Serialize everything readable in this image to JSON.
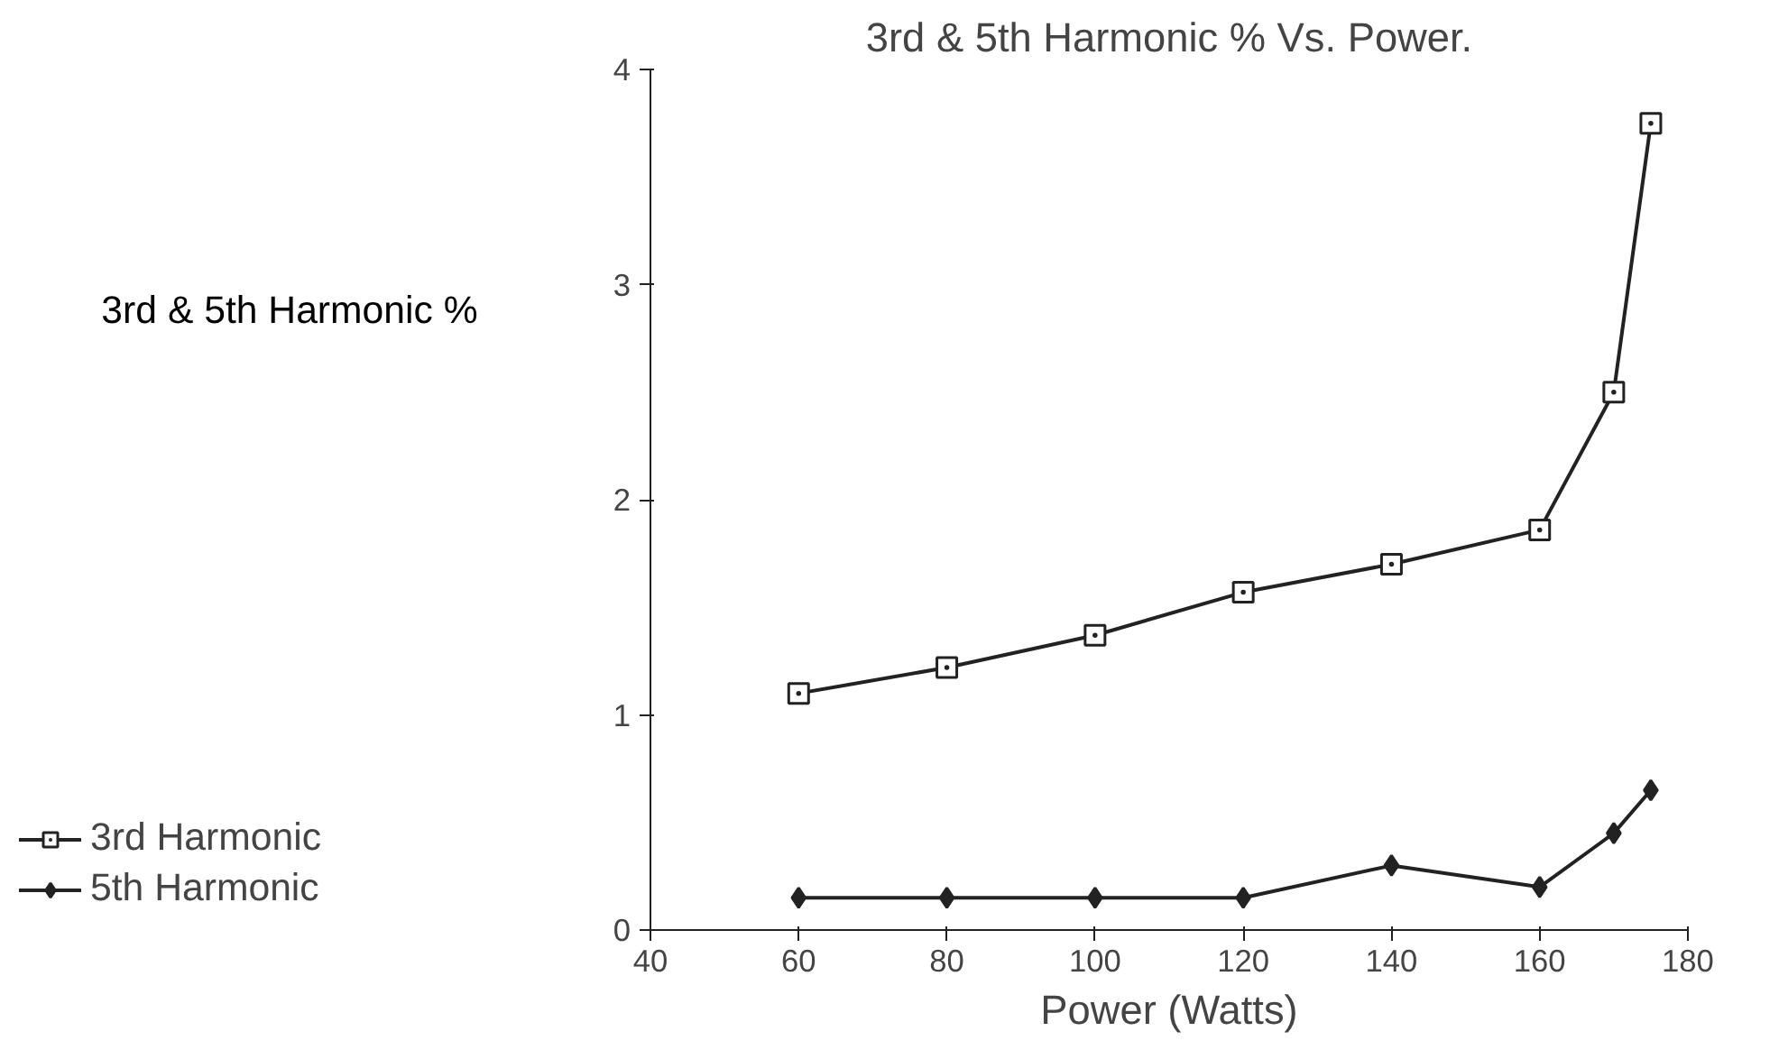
{
  "chart_data": {
    "type": "line",
    "title": "3rd & 5th Harmonic % Vs. Power.",
    "xlabel": "Power (Watts)",
    "ylabel": "3rd & 5th Harmonic %",
    "x": [
      60,
      80,
      100,
      120,
      140,
      160,
      170,
      175
    ],
    "series": [
      {
        "name": "3rd Harmonic",
        "color": "#222222",
        "marker": "square",
        "values": [
          1.1,
          1.22,
          1.37,
          1.57,
          1.7,
          1.86,
          2.5,
          3.75
        ]
      },
      {
        "name": "5th Harmonic",
        "color": "#222222",
        "marker": "diamond",
        "values": [
          0.15,
          0.15,
          0.15,
          0.15,
          0.3,
          0.2,
          0.45,
          0.65
        ]
      }
    ],
    "xlim": [
      40,
      180
    ],
    "ylim": [
      0,
      4
    ],
    "xticks": [
      40,
      60,
      80,
      100,
      120,
      140,
      160,
      180
    ],
    "yticks": [
      0,
      1,
      2,
      3,
      4
    ],
    "grid": false,
    "legend": "bottom left",
    "line_style": "solid"
  }
}
